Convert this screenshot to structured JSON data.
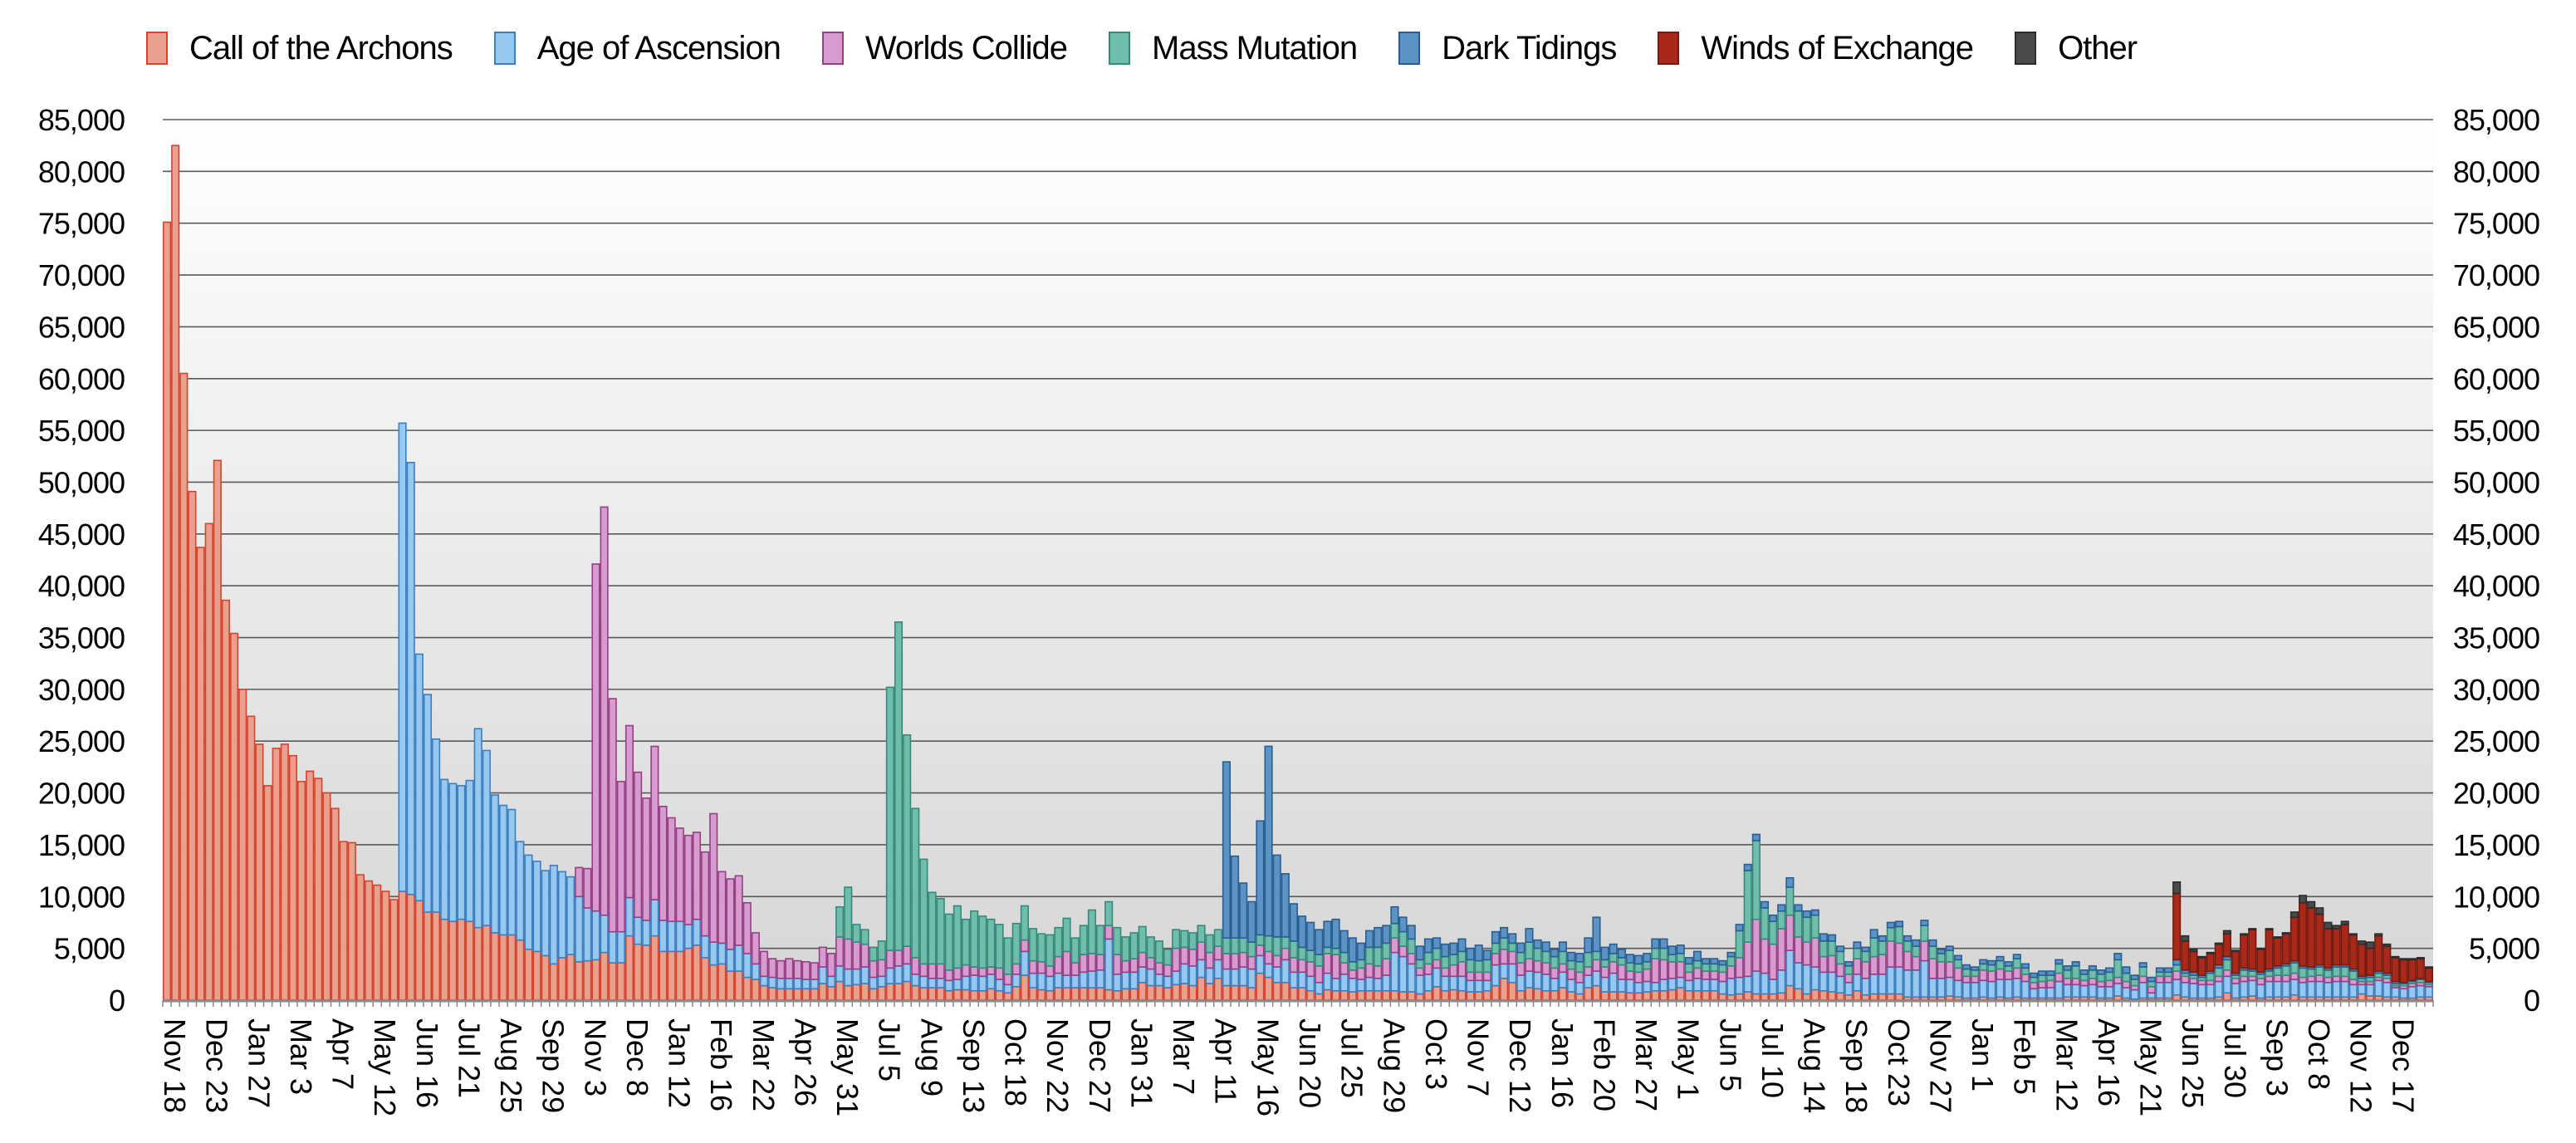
{
  "chart_data": {
    "type": "bar",
    "stacked": true,
    "title": "",
    "xlabel": "",
    "ylabel": "",
    "ylim": [
      0,
      85000
    ],
    "y_tick_step": 5000,
    "value_unit": 1000,
    "grid": true,
    "legend_position": "top",
    "bar_count": 270,
    "tick_every": 5,
    "y_tick_labels": [
      "0",
      "5,000",
      "10,000",
      "15,000",
      "20,000",
      "25,000",
      "30,000",
      "35,000",
      "40,000",
      "45,000",
      "50,000",
      "55,000",
      "60,000",
      "65,000",
      "70,000",
      "75,000",
      "80,000",
      "85,000"
    ],
    "x_tick_labels": [
      "Nov 18",
      "Dec 23",
      "Jan 27",
      "Mar 3",
      "Apr 7",
      "May 12",
      "Jun 16",
      "Jul 21",
      "Aug 25",
      "Sep 29",
      "Nov 3",
      "Dec 8",
      "Jan 12",
      "Feb 16",
      "Mar 22",
      "Apr 26",
      "May 31",
      "Jul 5",
      "Aug 9",
      "Sep 13",
      "Oct 18",
      "Nov 22",
      "Dec 27",
      "Jan 31",
      "Mar 7",
      "Apr 11",
      "May 16",
      "Jun 20",
      "Jul 25",
      "Aug 29",
      "Oct 3",
      "Nov 7",
      "Dec 12",
      "Jan 16",
      "Feb 20",
      "Mar 27",
      "May 1",
      "Jun 5",
      "Jul 10",
      "Aug 14",
      "Sep 18",
      "Oct 23",
      "Nov 27",
      "Jan 1",
      "Feb 5",
      "Mar 12",
      "Apr 16",
      "May 21",
      "Jun 25",
      "Jul 30",
      "Sep 3",
      "Oct 8",
      "Nov 12",
      "Dec 17"
    ],
    "series": [
      {
        "name": "Call of the Archons",
        "color": "#e9a08c",
        "stroke": "#d6432e",
        "start_index": 0,
        "values": [
          75.1,
          82.5,
          60.5,
          49.1,
          43.7,
          46.0,
          52.1,
          38.6,
          35.4,
          30.0,
          27.4,
          24.7,
          20.7,
          24.3,
          24.7,
          23.6,
          21.1,
          22.1,
          21.4,
          20.0,
          18.5,
          15.3,
          15.2,
          12.1,
          11.5,
          11.1,
          10.5,
          9.7,
          10.5,
          10.2,
          9.6,
          8.5,
          8.5,
          7.8,
          7.6,
          7.8,
          7.6,
          7.0,
          7.2,
          6.5,
          6.3,
          6.3,
          5.8,
          4.9,
          4.7,
          4.3,
          3.5,
          4.1,
          4.4,
          3.7,
          3.8,
          3.9,
          4.6,
          3.6,
          3.6,
          6.2,
          5.4,
          5.3,
          6.2,
          4.7,
          4.7,
          4.7,
          5.0,
          5.3,
          4.1,
          3.4,
          3.5,
          2.8,
          2.8,
          2.2,
          2.0,
          1.4,
          1.2,
          1.1,
          1.1,
          1.1,
          1.1,
          1.1,
          1.6,
          1.3,
          1.8,
          1.4,
          1.5,
          1.6,
          1.1,
          1.3,
          1.6,
          1.6,
          1.8,
          1.4,
          1.2,
          1.2,
          1.2,
          0.9,
          1.0,
          1.0,
          0.9,
          0.9,
          1.1,
          0.9,
          0.7,
          1.3,
          2.4,
          1.2,
          1.0,
          0.9,
          1.2,
          1.2,
          1.2,
          1.2,
          1.2,
          1.2,
          1.0,
          0.9,
          1.1,
          1.1,
          1.7,
          1.4,
          1.4,
          1.2,
          1.5,
          1.6,
          1.4,
          2.2,
          1.6,
          2.1,
          1.4,
          1.4,
          1.4,
          1.2,
          2.6,
          2.2,
          1.7,
          1.7,
          1.2,
          1.2,
          0.9,
          0.6,
          1.0,
          0.9,
          0.9,
          0.8,
          0.9,
          0.9,
          0.9,
          0.9,
          0.9,
          0.8,
          0.8,
          0.6,
          0.9,
          1.3,
          0.9,
          1.0,
          0.9,
          0.8,
          0.8,
          0.9,
          1.4,
          2.1,
          1.7,
          0.9,
          1.2,
          1.1,
          0.9,
          0.9,
          1.2,
          0.8,
          0.6,
          1.2,
          1.4,
          0.8,
          0.8,
          0.8,
          0.7,
          0.7,
          0.8,
          0.9,
          0.9,
          1.0,
          1.2,
          0.9,
          0.9,
          0.9,
          0.9,
          0.6,
          0.5,
          0.6,
          0.8,
          0.6,
          0.6,
          0.6,
          0.7,
          1.4,
          1.1,
          0.6,
          1.0,
          0.9,
          0.8,
          0.7,
          0.5,
          0.9,
          0.5,
          0.6,
          0.6,
          0.6,
          0.6,
          0.3,
          0.3,
          0.3,
          0.3,
          0.3,
          0.4,
          0.3,
          0.2,
          0.2,
          0.3,
          0.2,
          0.3,
          0.2,
          0.3,
          0.2,
          0.2,
          0.2,
          0.2,
          0.2,
          0.3,
          0.3,
          0.3,
          0.3,
          0.2,
          0.2,
          0.4,
          0.2,
          0.1,
          0.2,
          0.2,
          0.2,
          0.2,
          0.5,
          0.3,
          0.2,
          0.2,
          0.2,
          0.3,
          0.7,
          0.2,
          0.3,
          0.4,
          0.2,
          0.3,
          0.3,
          0.3,
          0.5,
          0.3,
          0.3,
          0.3,
          0.3,
          0.3,
          0.3,
          0.3,
          0.6,
          0.4,
          0.4,
          0.3,
          0.3,
          0.2,
          0.2,
          0.3,
          0.3
        ]
      },
      {
        "name": "Age of Ascension",
        "color": "#96c8f0",
        "stroke": "#3b7fc0",
        "start_index": 28,
        "values": [
          45.2,
          41.7,
          23.8,
          21.0,
          16.7,
          13.5,
          13.3,
          12.9,
          13.6,
          19.2,
          16.9,
          13.3,
          12.5,
          12.1,
          9.5,
          9.1,
          8.7,
          8.2,
          9.5,
          8.3,
          7.5,
          6.3,
          5.1,
          4.7,
          3.6,
          3.0,
          3.0,
          3.7,
          2.6,
          2.4,
          3.5,
          3.0,
          2.9,
          2.9,
          2.3,
          2.5,
          2.1,
          2.2,
          2.0,
          2.1,
          2.5,
          2.3,
          1.5,
          0.9,
          1.0,
          1.0,
          1.0,
          1.0,
          0.9,
          0.9,
          1.6,
          1.0,
          1.5,
          1.6,
          1.5,
          1.6,
          1.1,
          1.0,
          1.5,
          1.7,
          1.7,
          1.1,
          1.1,
          0.9,
          0.9,
          1.0,
          1.0,
          1.3,
          1.5,
          1.4,
          1.4,
          1.1,
          0.8,
          1.2,
          2.3,
          1.4,
          1.6,
          1.4,
          1.4,
          1.2,
          1.2,
          1.5,
          1.6,
          1.7,
          4.9,
          1.6,
          1.6,
          1.6,
          1.5,
          1.6,
          1.1,
          1.1,
          1.3,
          1.9,
          1.9,
          1.7,
          1.5,
          1.8,
          1.6,
          1.6,
          1.8,
          1.8,
          1.7,
          1.3,
          1.5,
          2.2,
          1.5,
          1.5,
          1.4,
          1.1,
          1.6,
          1.2,
          1.6,
          1.3,
          1.1,
          1.3,
          1.2,
          1.5,
          3.7,
          3.4,
          2.7,
          1.8,
          1.6,
          1.8,
          1.4,
          1.3,
          1.4,
          1.1,
          1.1,
          1.0,
          2.0,
          1.4,
          1.8,
          1.5,
          1.6,
          1.6,
          1.6,
          1.2,
          1.5,
          1.2,
          1.1,
          1.2,
          1.4,
          1.4,
          1.8,
          1.2,
          1.3,
          1.0,
          1.0,
          0.8,
          1.1,
          1.1,
          1.0,
          1.0,
          1.2,
          1.1,
          1.1,
          1.2,
          1.6,
          1.6,
          1.5,
          2.2,
          2.0,
          1.4,
          2.2,
          3.4,
          2.5,
          2.8,
          2.2,
          1.8,
          1.9,
          1.6,
          1.2,
          1.6,
          1.6,
          1.9,
          1.9,
          2.6,
          2.6,
          2.6,
          2.6,
          3.5,
          1.8,
          1.8,
          1.8,
          1.6,
          1.5,
          1.5,
          1.6,
          1.6,
          1.7,
          1.8,
          1.8,
          1.6,
          0.9,
          1.0,
          1.0,
          1.6,
          1.2,
          1.2,
          1.1,
          1.2,
          1.1,
          1.1,
          1.2,
          1.0,
          0.9,
          1.5,
          0.5,
          1.5,
          1.5,
          1.5,
          1.4,
          1.4,
          1.3,
          1.3,
          1.5,
          1.6,
          1.4,
          1.5,
          1.5,
          1.3,
          1.5,
          1.5,
          1.5,
          1.5,
          1.4,
          1.5,
          1.5,
          1.4,
          1.5,
          1.5,
          1.2,
          0.9,
          1.1,
          1.5,
          1.4,
          0.9,
          0.9,
          1.1,
          1.1,
          1.0
        ]
      },
      {
        "name": "Worlds Collide",
        "color": "#d89bd0",
        "stroke": "#963f84",
        "start_index": 49,
        "values": [
          2.8,
          3.8,
          33.5,
          39.4,
          22.5,
          14.5,
          16.6,
          14.0,
          11.8,
          14.8,
          11.0,
          10.0,
          9.0,
          8.6,
          8.4,
          8.1,
          12.4,
          6.9,
          6.8,
          6.7,
          4.9,
          3.0,
          2.4,
          1.8,
          1.7,
          1.9,
          1.7,
          1.7,
          1.6,
          1.9,
          2.2,
          2.8,
          2.9,
          2.6,
          2.2,
          1.6,
          1.6,
          1.7,
          1.5,
          1.7,
          1.6,
          1.2,
          1.4,
          1.4,
          1.0,
          1.1,
          1.1,
          0.8,
          0.8,
          0.7,
          1.1,
          1.0,
          1.0,
          1.1,
          1.2,
          1.1,
          1.0,
          1.6,
          2.3,
          1.2,
          1.7,
          1.7,
          1.5,
          1.3,
          1.9,
          1.1,
          1.3,
          1.4,
          1.1,
          1.1,
          1.1,
          2.2,
          1.6,
          1.6,
          1.7,
          1.5,
          1.3,
          1.5,
          1.5,
          1.4,
          1.2,
          1.0,
          1.2,
          1.1,
          1.1,
          1.4,
          1.2,
          1.4,
          1.6,
          1.9,
          2.3,
          1.1,
          0.8,
          1.1,
          1.3,
          1.2,
          1.6,
          1.4,
          1.0,
          1.0,
          0.7,
          1.0,
          0.8,
          0.8,
          1.1,
          1.4,
          0.8,
          0.8,
          0.8,
          1.1,
          1.4,
          1.2,
          1.2,
          1.2,
          1.1,
          1.1,
          1.0,
          0.8,
          1.0,
          1.0,
          0.8,
          1.1,
          1.0,
          1.1,
          1.4,
          0.8,
          1.0,
          1.2,
          2.3,
          1.9,
          1.6,
          1.5,
          0.8,
          1.0,
          0.8,
          0.8,
          0.9,
          1.2,
          1.9,
          3.3,
          5.0,
          3.3,
          3.4,
          4.0,
          3.4,
          2.5,
          2.2,
          2.8,
          1.5,
          1.6,
          1.2,
          0.8,
          1.5,
          1.6,
          1.7,
          1.9,
          2.5,
          2.3,
          1.8,
          1.3,
          1.9,
          1.9,
          1.6,
          1.5,
          1.2,
          0.6,
          0.6,
          1.0,
          1.0,
          1.0,
          0.8,
          1.0,
          0.7,
          0.6,
          0.6,
          0.7,
          0.8,
          0.6,
          0.6,
          0.5,
          0.6,
          0.5,
          0.6,
          0.6,
          0.6,
          0.4,
          0.6,
          0.6,
          0.6,
          0.6,
          0.8,
          0.6,
          0.5,
          0.4,
          0.4,
          0.5,
          0.6,
          0.5,
          0.5,
          0.4,
          0.6,
          0.5,
          0.6,
          0.6,
          0.6,
          0.5,
          0.5,
          0.6,
          0.5,
          0.5,
          0.5,
          0.5,
          0.3,
          0.3,
          0.3,
          0.4,
          0.2,
          0.3,
          0.3,
          0.3,
          0.2
        ]
      },
      {
        "name": "Mass Mutation",
        "color": "#6fbdac",
        "stroke": "#368a79",
        "start_index": 80,
        "values": [
          2.9,
          5.0,
          1.7,
          1.4,
          1.3,
          1.8,
          25.4,
          31.7,
          20.4,
          14.4,
          10.1,
          6.9,
          6.3,
          5.4,
          6.0,
          4.4,
          5.4,
          5.0,
          4.6,
          4.2,
          3.5,
          3.9,
          3.3,
          3.1,
          2.7,
          3.0,
          2.8,
          3.2,
          2.4,
          2.8,
          4.2,
          2.8,
          2.3,
          2.6,
          2.3,
          2.5,
          2.5,
          2.0,
          2.1,
          1.5,
          1.8,
          1.6,
          1.6,
          1.6,
          1.7,
          1.6,
          1.5,
          1.5,
          1.4,
          1.4,
          1.0,
          1.5,
          1.8,
          1.1,
          1.6,
          1.2,
          1.1,
          1.1,
          0.6,
          0.6,
          1.0,
          0.8,
          0.8,
          1.6,
          1.8,
          1.5,
          1.4,
          1.4,
          1.4,
          0.8,
          1.1,
          1.1,
          1.1,
          1.0,
          1.0,
          1.2,
          1.1,
          1.2,
          1.0,
          1.1,
          0.8,
          1.0,
          1.6,
          1.2,
          1.1,
          1.1,
          1.2,
          0.8,
          1.0,
          1.4,
          0.8,
          0.7,
          0.8,
          0.7,
          0.8,
          0.8,
          0.7,
          1.0,
          1.1,
          0.7,
          0.8,
          0.8,
          0.7,
          0.7,
          0.7,
          0.7,
          0.9,
          2.6,
          6.9,
          7.6,
          3.0,
          2.2,
          1.7,
          2.7,
          2.5,
          2.4,
          2.2,
          1.5,
          1.4,
          1.2,
          0.8,
          1.0,
          1.0,
          1.8,
          1.3,
          1.3,
          1.6,
          1.0,
          1.0,
          1.5,
          1.2,
          0.8,
          1.1,
          0.8,
          0.7,
          0.6,
          0.6,
          0.6,
          0.8,
          0.5,
          0.9,
          0.6,
          0.5,
          0.6,
          0.5,
          0.9,
          0.8,
          1.2,
          0.6,
          0.8,
          0.7,
          0.8,
          1.7,
          0.8,
          0.6,
          0.9,
          0.5,
          0.4,
          0.4,
          0.6,
          0.3,
          0.3,
          0.3,
          0.7,
          0.8,
          1.0,
          0.3,
          0.6,
          0.5,
          0.4,
          0.5,
          0.7,
          0.9,
          1.0,
          0.9,
          0.7,
          0.8,
          0.7,
          0.9,
          0.9,
          0.8,
          0.3,
          0.4,
          0.4,
          0.3,
          0.2,
          0.2,
          0.2,
          0.3,
          0.2
        ]
      },
      {
        "name": "Dark Tidings",
        "color": "#5c93c7",
        "stroke": "#2a5d90",
        "start_index": 126,
        "values": [
          17.0,
          7.9,
          5.3,
          3.9,
          11.0,
          18.3,
          7.9,
          6.1,
          3.6,
          3.0,
          2.7,
          2.4,
          2.5,
          2.8,
          2.1,
          2.3,
          1.6,
          1.6,
          1.9,
          1.7,
          1.6,
          1.4,
          1.3,
          1.3,
          1.3,
          1.0,
          1.2,
          1.1,
          1.2,
          1.1,
          1.5,
          0.9,
          1.1,
          1.0,
          0.9,
          0.9,
          1.3,
          0.8,
          0.9,
          0.7,
          0.9,
          0.8,
          0.8,
          1.4,
          3.3,
          1.2,
          0.9,
          0.8,
          0.8,
          0.8,
          0.8,
          0.9,
          0.9,
          0.8,
          0.8,
          0.6,
          0.9,
          0.5,
          0.5,
          0.4,
          0.4,
          0.6,
          0.6,
          0.6,
          0.6,
          0.6,
          0.6,
          0.9,
          0.6,
          0.6,
          0.5,
          0.7,
          0.6,
          0.5,
          0.4,
          0.6,
          0.4,
          0.8,
          0.5,
          0.5,
          0.5,
          0.5,
          0.6,
          0.5,
          0.6,
          0.4,
          0.4,
          0.4,
          0.4,
          0.3,
          0.4,
          0.4,
          0.4,
          0.4,
          0.4,
          0.4,
          0.4,
          0.4,
          0.4,
          0.4,
          0.4,
          0.4,
          0.4,
          0.4,
          0.4,
          0.4,
          0.6,
          0.6,
          0.4,
          0.4,
          0.4,
          0.4,
          0.4,
          0.5,
          0.3,
          0.3,
          0.2,
          0.2,
          0.3,
          0.3,
          0.2,
          0.2,
          0.2,
          0.2,
          0.2,
          0.2,
          0.2,
          0.2,
          0.2,
          0.2,
          0.2,
          0.2,
          0.2,
          0.2,
          0.2,
          0.2,
          0.2,
          0.2,
          0.2,
          0.2,
          0.1,
          0.1,
          0.1,
          0.1
        ]
      },
      {
        "name": "Winds of Exchange",
        "color": "#a8291a",
        "stroke": "#761a0f",
        "start_index": 239,
        "values": [
          6.4,
          2.8,
          2.0,
          1.7,
          1.7,
          2.0,
          2.2,
          2.1,
          3.2,
          3.8,
          2.2,
          3.8,
          2.7,
          2.9,
          4.2,
          6.1,
          5.7,
          4.9,
          3.8,
          3.5,
          3.9,
          3.3,
          3.1,
          2.6,
          3.4,
          2.6,
          2.3,
          2.2,
          2.0,
          1.9,
          1.3
        ]
      },
      {
        "name": "Other",
        "color": "#4a4a4a",
        "stroke": "#2c2c2c",
        "start_index": 239,
        "values": [
          1.1,
          0.5,
          0.2,
          0.1,
          0.1,
          0.1,
          0.3,
          0.1,
          0.1,
          0.1,
          0.1,
          0.1,
          0.1,
          0.1,
          0.5,
          0.7,
          0.6,
          0.6,
          0.6,
          0.3,
          0.3,
          0.1,
          0.3,
          0.6,
          0.2,
          0.2,
          0.1,
          0.1,
          0.1,
          0.1,
          0.1
        ]
      }
    ]
  }
}
